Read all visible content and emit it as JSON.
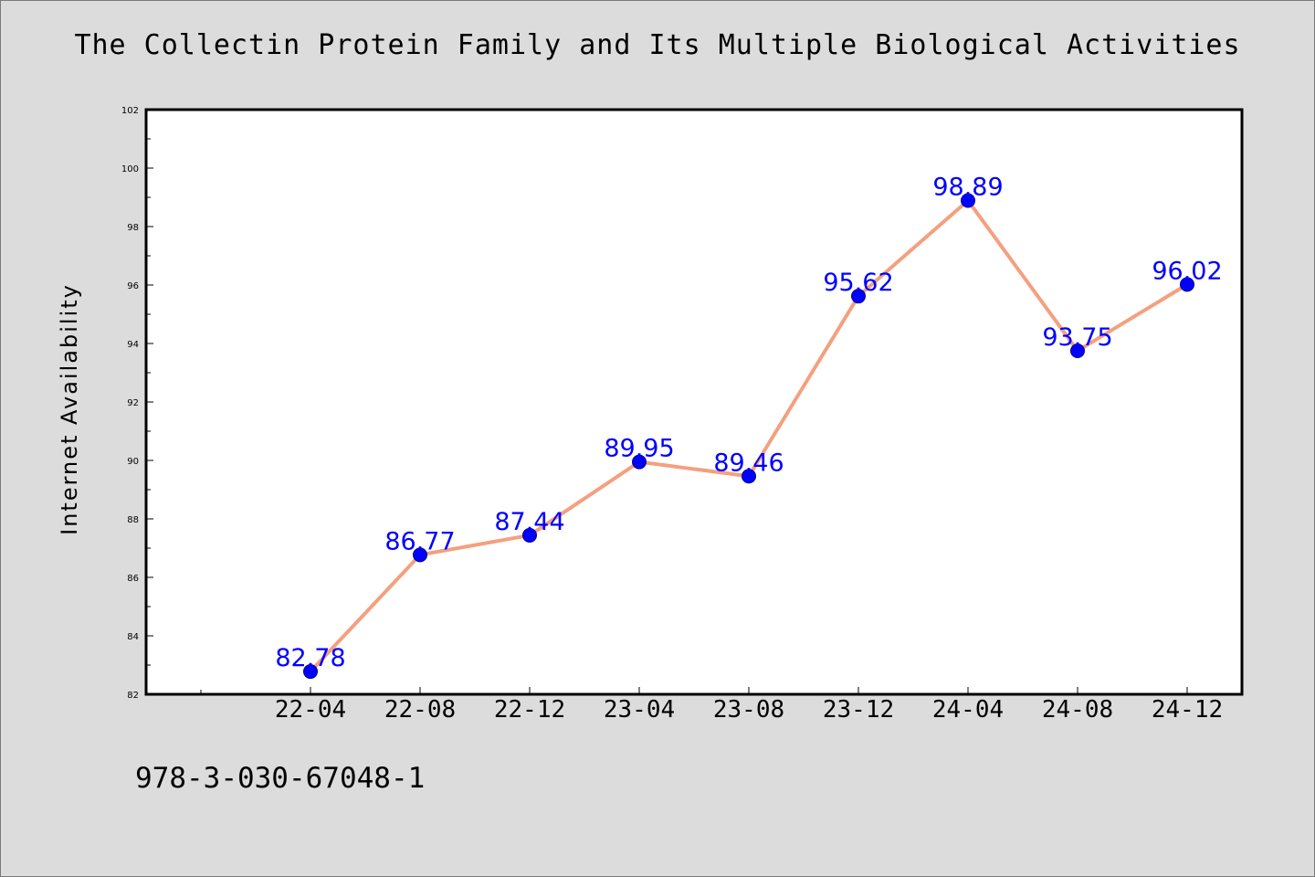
{
  "chart_data": {
    "type": "line",
    "title": "The Collectin Protein Family and Its Multiple Biological Activities",
    "xlabel": "",
    "ylabel": "Internet Availability",
    "categories": [
      "22-04",
      "22-08",
      "22-12",
      "23-04",
      "23-08",
      "23-12",
      "24-04",
      "24-08",
      "24-12"
    ],
    "series": [
      {
        "values": [
          82.78,
          86.77,
          87.44,
          89.95,
          89.46,
          95.62,
          98.89,
          93.75,
          96.02
        ]
      }
    ],
    "data_labels": [
      "82.78",
      "86.77",
      "87.44",
      "89.95",
      "89.46",
      "95.62",
      "98.89",
      "93.75",
      "96.02"
    ],
    "ylim": [
      82,
      102
    ],
    "yticks": [
      "82",
      "84",
      "86",
      "88",
      "90",
      "92",
      "94",
      "96",
      "98",
      "100",
      "102"
    ],
    "grid": false,
    "legend": "none",
    "colors": {
      "line": "#f4a07f",
      "marker": "#0000ff",
      "label": "#0000ff",
      "background": "#dcdcdc",
      "plot_area": "#ffffff"
    }
  },
  "footer": {
    "code": "978-3-030-67048-1"
  }
}
